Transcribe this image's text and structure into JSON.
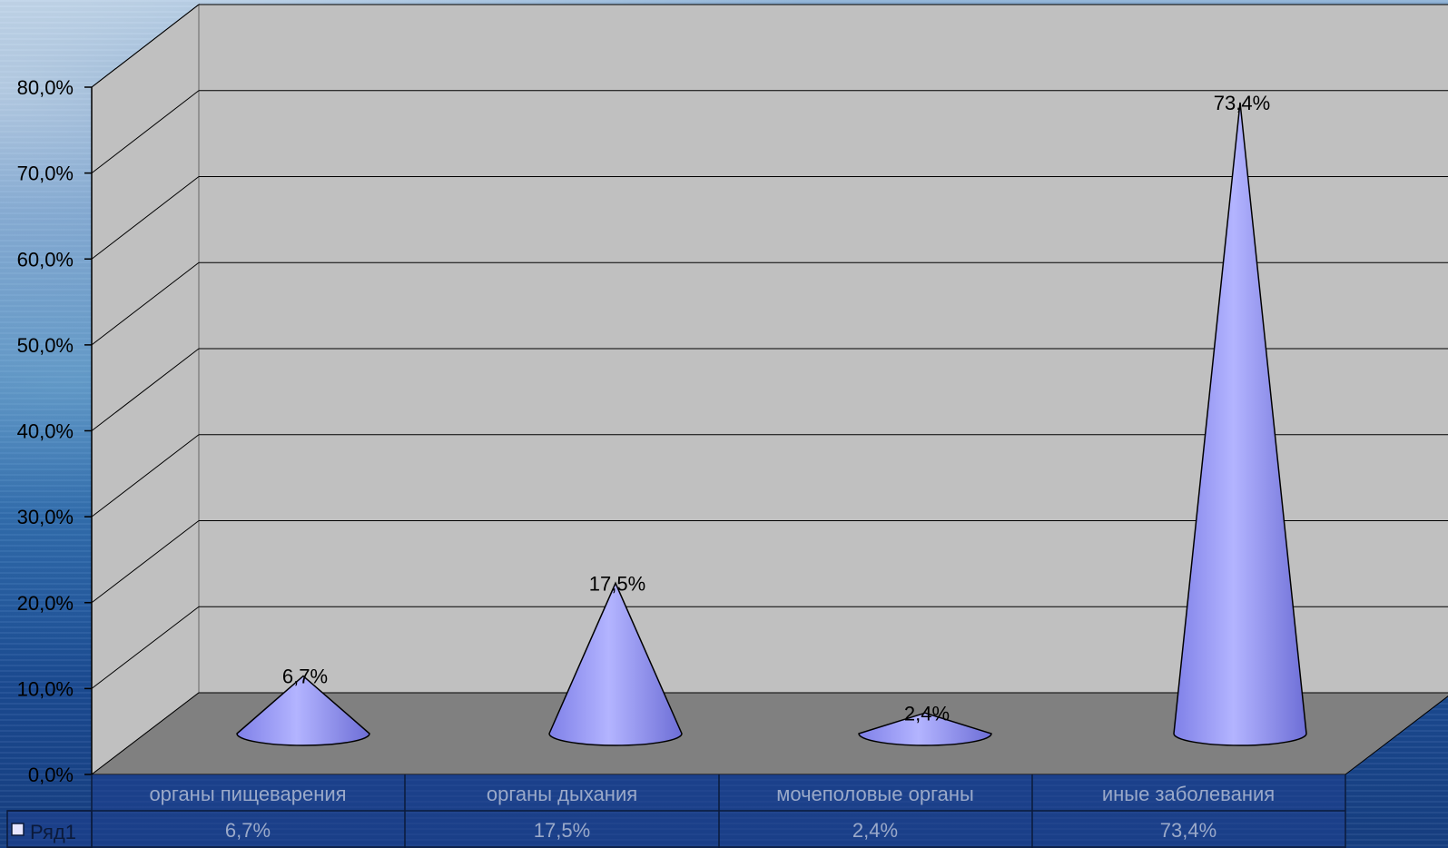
{
  "chart_data": {
    "type": "bar",
    "bar_shape": "cone",
    "categories": [
      "органы пищеварения",
      "органы дыхания",
      "мочеполовые органы",
      "иные заболевания"
    ],
    "series": [
      {
        "name": "Ряд1",
        "values": [
          6.7,
          17.5,
          2.4,
          73.4
        ],
        "labels": [
          "6,7%",
          "17,5%",
          "2,4%",
          "73,4%"
        ],
        "color": "#9a9cf4"
      }
    ],
    "y_ticks": [
      "0,0%",
      "10,0%",
      "20,0%",
      "30,0%",
      "40,0%",
      "50,0%",
      "60,0%",
      "70,0%",
      "80,0%"
    ],
    "ylim": [
      0,
      80
    ],
    "grid": true,
    "data_table": true,
    "legend_key": "Ряд1",
    "colors": {
      "back_wall": "#c0c0c0",
      "side_wall": "#c0c0c0",
      "floor": "#808080",
      "gridline": "#000000",
      "table_bg": "#1f3f8f"
    }
  }
}
